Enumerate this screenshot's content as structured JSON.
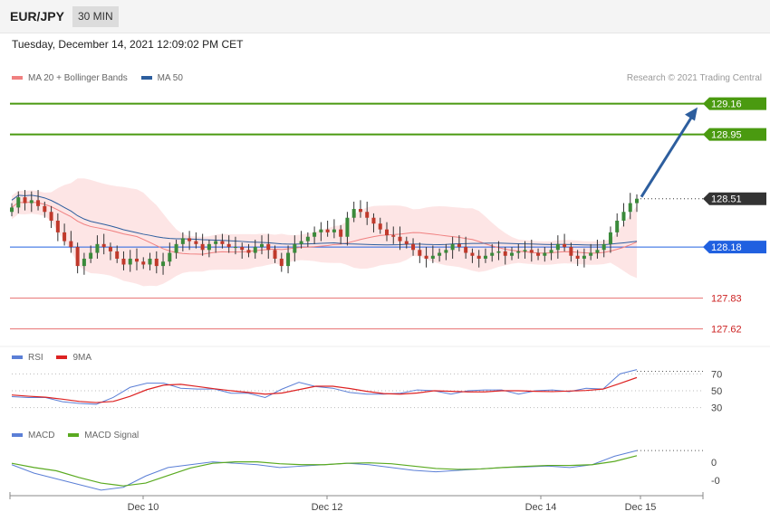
{
  "header": {
    "pair": "EUR/JPY",
    "timeframe": "30 MIN"
  },
  "datetime": "Tuesday, December 14, 2021 12:09:02 PM CET",
  "credit": "Research © 2021 Trading Central",
  "colors": {
    "bb_fill": "#fde0e0",
    "ma20": "#f08080",
    "ma50": "#2d5e9e",
    "up": "#3a8a3a",
    "down": "#c0392b",
    "resistance": "#4a9a10",
    "pivot": "#2060e0",
    "support": "#e04040",
    "rsi": "#5b7fd6",
    "rsi_ma": "#dd2222",
    "macd": "#5b7fd6",
    "macd_signal": "#5aaa20"
  },
  "price_panel": {
    "legend": [
      {
        "label": "MA 20 + Bollinger Bands",
        "color": "#f08080"
      },
      {
        "label": "MA 50",
        "color": "#2d5e9e"
      }
    ],
    "levels": [
      {
        "value": 129.16,
        "label": "129.16",
        "kind": "resistance"
      },
      {
        "value": 128.95,
        "label": "128.95",
        "kind": "resistance"
      },
      {
        "value": 128.51,
        "label": "128.51",
        "kind": "current"
      },
      {
        "value": 128.18,
        "label": "128.18",
        "kind": "pivot"
      },
      {
        "value": 127.83,
        "label": "127.83",
        "kind": "support"
      },
      {
        "value": 127.62,
        "label": "127.62",
        "kind": "support"
      }
    ],
    "target_arrow": {
      "from": 128.51,
      "to": 129.16
    }
  },
  "rsi_panel": {
    "legend": [
      {
        "label": "RSI",
        "color": "#5b7fd6"
      },
      {
        "label": "9MA",
        "color": "#dd2222"
      }
    ],
    "ticks": [
      "70",
      "50",
      "30"
    ]
  },
  "macd_panel": {
    "legend": [
      {
        "label": "MACD",
        "color": "#5b7fd6"
      },
      {
        "label": "MACD Signal",
        "color": "#5aaa20"
      }
    ],
    "ticks": [
      "0",
      "-0"
    ]
  },
  "x_axis": {
    "labels": [
      "Dec 10",
      "Dec 12",
      "Dec 14",
      "Dec 15"
    ]
  },
  "chart_data": {
    "type": "candlestick",
    "close": [
      128.45,
      128.52,
      128.48,
      128.5,
      128.46,
      128.42,
      128.36,
      128.28,
      128.22,
      128.18,
      128.05,
      128.1,
      128.14,
      128.2,
      128.18,
      128.15,
      128.1,
      128.06,
      128.1,
      128.08,
      128.06,
      128.1,
      128.05,
      128.08,
      128.14,
      128.2,
      128.24,
      128.22,
      128.2,
      128.16,
      128.2,
      128.22,
      128.2,
      128.18,
      128.18,
      128.16,
      128.14,
      128.18,
      128.2,
      128.16,
      128.1,
      128.05,
      128.14,
      128.2,
      128.22,
      128.25,
      128.28,
      128.3,
      128.28,
      128.3,
      128.25,
      128.38,
      128.44,
      128.42,
      128.38,
      128.34,
      128.3,
      128.26,
      128.25,
      128.22,
      128.2,
      128.16,
      128.12,
      128.1,
      128.12,
      128.14,
      128.16,
      128.2,
      128.18,
      128.14,
      128.12,
      128.1,
      128.12,
      128.14,
      128.15,
      128.12,
      128.14,
      128.15,
      128.16,
      128.14,
      128.12,
      128.14,
      128.16,
      128.2,
      128.18,
      128.12,
      128.1,
      128.12,
      128.14,
      128.16,
      128.2,
      128.28,
      128.36,
      128.42,
      128.48,
      128.51
    ],
    "rsi_trend": [
      45,
      42,
      40,
      38,
      34,
      36,
      42,
      52,
      60,
      58,
      55,
      52,
      50,
      48,
      46,
      44,
      52,
      58,
      56,
      52,
      50,
      46,
      44,
      48,
      50,
      52,
      46,
      48,
      52,
      50,
      48,
      50,
      49,
      50,
      52,
      54,
      70,
      73
    ],
    "macd_trend": [
      0.02,
      -0.01,
      -0.03,
      -0.05,
      -0.07,
      -0.06,
      -0.02,
      0.01,
      0.02,
      0.03,
      0.025,
      0.02,
      0.01,
      0.015,
      0.02,
      0.025,
      0.02,
      0.01,
      0.0,
      -0.005,
      0.0,
      0.005,
      0.01,
      0.012,
      0.015,
      0.01,
      0.02,
      0.05,
      0.07
    ]
  }
}
